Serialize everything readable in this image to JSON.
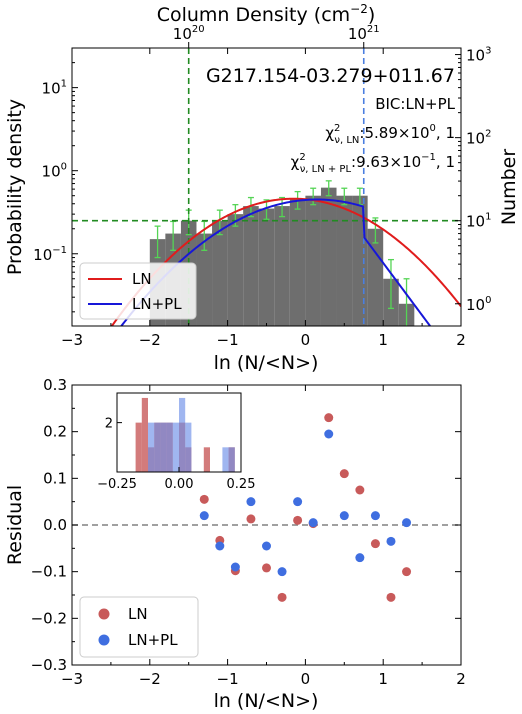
{
  "chart_data": [
    {
      "type": "bar",
      "panel": "top",
      "title": "G217.154-03.279+011.67",
      "annotations": [
        "BIC:LN+PL",
        {
          "sym": "χ",
          "sup": "2",
          "sub": "ν, LN",
          "text": ":5.89×10",
          "exp": "0",
          "tail": ", 1"
        },
        {
          "sym": "χ",
          "sup": "2",
          "sub": "ν, LN + PL",
          "text": ":9.63×10",
          "exp": "−1",
          "tail": ", 1"
        }
      ],
      "xlabel": "ln (N/<N>)",
      "ylabel": "Probability density",
      "ylabel_right": "Number",
      "toplabel": "Column Density (cm−2)",
      "toplabel_parts": {
        "text": "Column Density (cm",
        "exp": "−2",
        "close": ")"
      },
      "xlim": [
        -3,
        2
      ],
      "ylim": [
        0.0135,
        30
      ],
      "yscale": "log",
      "xticks": [
        -3,
        -2,
        -1,
        0,
        1,
        2
      ],
      "xticklabels": [
        "−3",
        "−2",
        "−1",
        "0",
        "1",
        "2"
      ],
      "yticks": [
        0.1,
        1,
        10
      ],
      "yticklabels": [
        {
          "base": "10",
          "exp": "−1"
        },
        {
          "base": "10",
          "exp": "0"
        },
        {
          "base": "10",
          "exp": "1"
        }
      ],
      "right_yticks": [
        1,
        10,
        100,
        1000
      ],
      "right_yticklabels": [
        {
          "base": "10",
          "exp": "0"
        },
        {
          "base": "10",
          "exp": "1"
        },
        {
          "base": "10",
          "exp": "2"
        },
        {
          "base": "10",
          "exp": "3"
        }
      ],
      "number_per_density": 40,
      "top_xticks": [
        {
          "lnx": -1.5,
          "label": {
            "base": "10",
            "exp": "20"
          }
        },
        {
          "lnx": 0.75,
          "label": {
            "base": "10",
            "exp": "21"
          }
        }
      ],
      "bin_edges": [
        -2.0,
        -1.8,
        -1.6,
        -1.4,
        -1.2,
        -1.0,
        -0.8,
        -0.6,
        -0.4,
        -0.2,
        0.0,
        0.2,
        0.4,
        0.6,
        0.8,
        1.0,
        1.2,
        1.4
      ],
      "hist_values": [
        0.15,
        0.175,
        0.25,
        0.175,
        0.25,
        0.3,
        0.375,
        0.35,
        0.375,
        0.45,
        0.5,
        0.625,
        0.5,
        0.5,
        0.2,
        0.05,
        0.025
      ],
      "error_up": [
        0.215,
        0.245,
        0.335,
        0.245,
        0.335,
        0.39,
        0.475,
        0.445,
        0.475,
        0.56,
        0.615,
        0.755,
        0.615,
        0.615,
        0.27,
        0.085,
        0.05
      ],
      "error_down": [
        0.09,
        0.11,
        0.17,
        0.11,
        0.17,
        0.215,
        0.28,
        0.26,
        0.28,
        0.345,
        0.39,
        0.5,
        0.39,
        0.39,
        0.135,
        0.022,
        0.007
      ],
      "hist_color": "#6e6e6e",
      "error_color": "#55d455",
      "vlines": [
        {
          "x": -1.5,
          "color": "#228b22",
          "style": "dashed"
        },
        {
          "x": 0.75,
          "color": "#4a7fe0",
          "style": "dashed"
        }
      ],
      "hline": {
        "y": 0.25,
        "color": "#228b22",
        "style": "dashed"
      },
      "series": [
        {
          "name": "LN",
          "color": "#e01c1c",
          "model": "lognormal",
          "amplitude": 0.46,
          "mu": -0.15,
          "sigma": 0.88
        },
        {
          "name": "LN+PL",
          "color": "#1717d8",
          "model": "lognormal+powerlaw",
          "amplitude": 0.45,
          "mu": 0.15,
          "sigma": 0.95,
          "break_x": 0.75,
          "break_y": 0.16,
          "slope": -2.9
        }
      ],
      "legend": {
        "position": "lower-left",
        "entries": [
          "LN",
          "LN+PL"
        ]
      }
    },
    {
      "type": "scatter",
      "panel": "bottom",
      "xlabel": "ln (N/<N>)",
      "ylabel": "Residual",
      "xlim": [
        -3,
        2
      ],
      "ylim": [
        -0.3,
        0.3
      ],
      "xticks": [
        -3,
        -2,
        -1,
        0,
        1,
        2
      ],
      "xticklabels": [
        "−3",
        "−2",
        "−1",
        "0",
        "1",
        "2"
      ],
      "yticks": [
        -0.3,
        -0.2,
        -0.1,
        0.0,
        0.1,
        0.2,
        0.3
      ],
      "yticklabels": [
        "−0.3",
        "−0.2",
        "−0.1",
        "0.0",
        "0.1",
        "0.2",
        "0.3"
      ],
      "hline": {
        "y": 0,
        "color": "#808080",
        "style": "dashed"
      },
      "series": [
        {
          "name": "LN",
          "color": "#c85a5a",
          "x": [
            -1.3,
            -1.1,
            -0.9,
            -0.7,
            -0.5,
            -0.3,
            -0.1,
            0.1,
            0.3,
            0.5,
            0.7,
            0.9,
            1.1,
            1.3
          ],
          "y": [
            0.055,
            -0.033,
            -0.098,
            0.013,
            -0.092,
            -0.155,
            0.01,
            0.003,
            0.23,
            0.11,
            0.075,
            -0.04,
            -0.155,
            -0.1
          ]
        },
        {
          "name": "LN+PL",
          "color": "#3f6ee0",
          "x": [
            -1.3,
            -1.1,
            -0.9,
            -0.7,
            -0.5,
            -0.3,
            -0.1,
            0.1,
            0.3,
            0.5,
            0.7,
            0.9,
            1.1,
            1.3
          ],
          "y": [
            0.02,
            -0.045,
            -0.09,
            0.05,
            -0.045,
            -0.1,
            0.05,
            0.005,
            0.195,
            0.02,
            -0.07,
            0.02,
            -0.035,
            0.005
          ]
        }
      ],
      "legend": {
        "position": "lower-left",
        "entries": [
          "LN",
          "LN+PL"
        ]
      },
      "inset": {
        "type": "histogram",
        "xlim": [
          -0.25,
          0.25
        ],
        "ylim": [
          0,
          3.2
        ],
        "xticks": [
          -0.25,
          0,
          0.25
        ],
        "xticklabels": [
          "−0.25",
          "0.00",
          "0.25"
        ],
        "yticks": [
          0,
          2
        ],
        "yticklabels": [
          "",
          "2"
        ],
        "bin_width": 0.025,
        "series": [
          {
            "name": "LN",
            "color": "#c85a5a",
            "alpha": 0.8,
            "bins": [
              [
                -0.175,
                2
              ],
              [
                -0.15,
                3
              ],
              [
                -0.125,
                1
              ],
              [
                -0.1,
                2
              ],
              [
                -0.075,
                2
              ],
              [
                -0.05,
                2
              ],
              [
                0.0,
                2
              ],
              [
                0.025,
                1
              ],
              [
                0.1,
                1
              ],
              [
                0.2,
                1
              ]
            ]
          },
          {
            "name": "LN+PL",
            "color": "#6d8fe8",
            "alpha": 0.65,
            "bins": [
              [
                -0.125,
                2
              ],
              [
                -0.1,
                2
              ],
              [
                -0.075,
                2
              ],
              [
                -0.05,
                2
              ],
              [
                -0.025,
                2
              ],
              [
                0.0,
                3
              ],
              [
                0.025,
                2
              ],
              [
                0.175,
                1
              ],
              [
                0.2,
                1
              ]
            ]
          }
        ]
      }
    }
  ]
}
